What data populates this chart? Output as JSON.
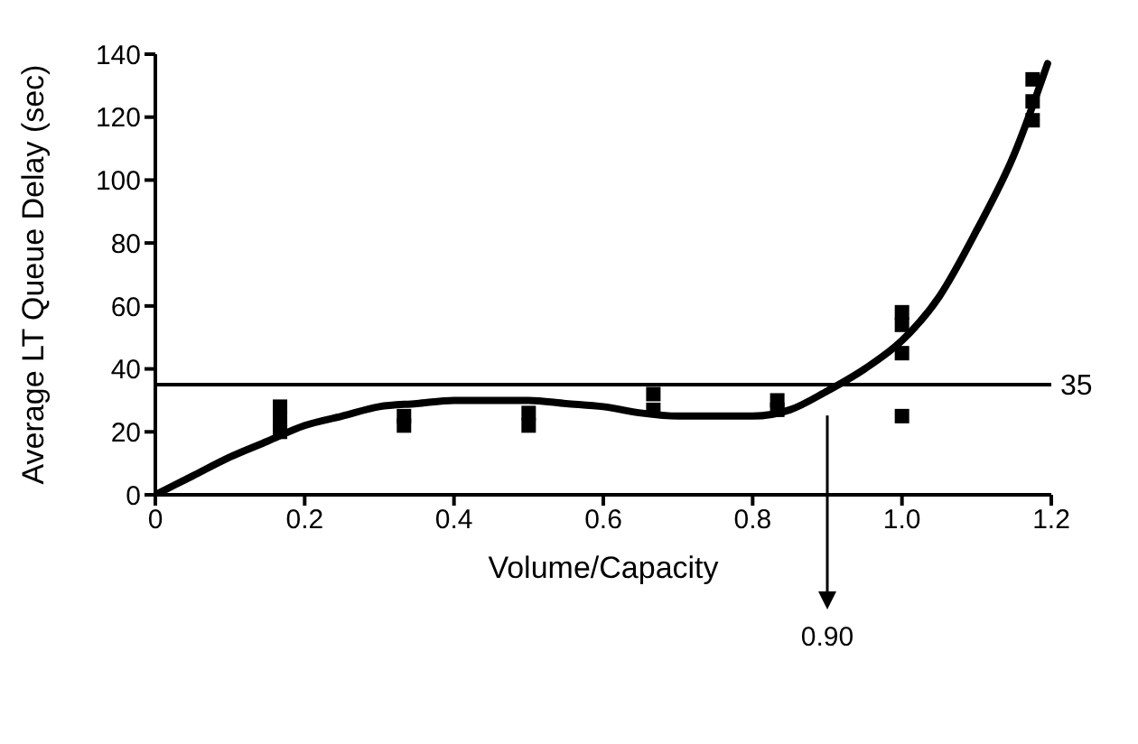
{
  "chart_data": {
    "type": "scatter",
    "xlabel": "Volume/Capacity",
    "ylabel": "Average LT Queue Delay (sec)",
    "xlim": [
      0,
      1.2
    ],
    "xticks": [
      0,
      0.2,
      0.4,
      0.6,
      0.8,
      {
        "value": 1,
        "label": "1.0"
      },
      1.2
    ],
    "ylim": [
      0,
      140
    ],
    "yticks": [
      0,
      20,
      40,
      60,
      80,
      100,
      120,
      140
    ],
    "series": [
      {
        "color": "#000000",
        "marker": "square",
        "x": [
          0.167,
          0.167,
          0.167,
          0.333,
          0.333,
          0.5,
          0.5,
          0.667,
          0.667,
          0.833,
          0.833,
          1.0,
          1.0,
          1.0,
          1.0,
          1.175,
          1.175,
          1.175
        ],
        "values": [
          28,
          24,
          20,
          25,
          22,
          26,
          22,
          32,
          27,
          30,
          27,
          58,
          54,
          45,
          25,
          132,
          125,
          119
        ]
      },
      {
        "type": "line",
        "color": "#000000",
        "marker": "none",
        "x": [
          0,
          0.05,
          0.1,
          0.15,
          0.2,
          0.25,
          0.3,
          0.35,
          0.4,
          0.5,
          0.55,
          0.6,
          0.65,
          0.7,
          0.8,
          0.85,
          0.9,
          0.95,
          1.0,
          1.05,
          1.1,
          1.15,
          1.195
        ],
        "values": [
          0,
          6,
          12,
          17,
          22,
          25,
          28,
          29,
          30,
          30,
          29,
          28,
          26,
          25,
          25,
          27,
          33,
          40,
          49,
          63,
          84,
          108,
          137
        ]
      }
    ],
    "ref_lines": [
      {
        "axis": "y",
        "value": 35,
        "label": "35"
      },
      {
        "axis": "x",
        "value": 0.9,
        "label": "0.90"
      }
    ]
  }
}
